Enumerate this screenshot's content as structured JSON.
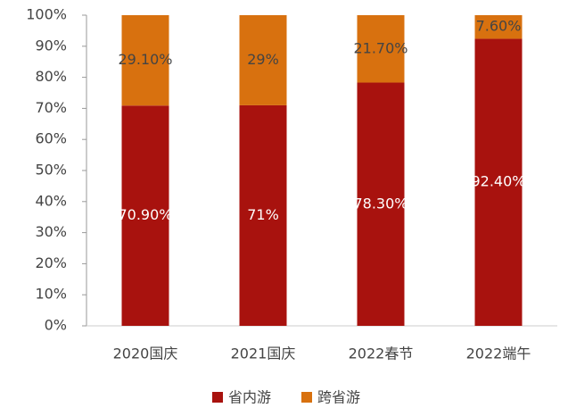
{
  "chart_data": {
    "type": "stacked_bar",
    "categories": [
      "2020国庆",
      "2021国庆",
      "2022春节",
      "2022端午"
    ],
    "series": [
      {
        "name": "省内游",
        "color": "#a8120e",
        "values": [
          70.9,
          71,
          78.3,
          92.4
        ],
        "value_labels": [
          "70.90%",
          "71%",
          "78.30%",
          "92.40%"
        ]
      },
      {
        "name": "跨省游",
        "color": "#d8710f",
        "values": [
          29.1,
          29,
          21.7,
          7.6
        ],
        "value_labels": [
          "29.10%",
          "29%",
          "21.70%",
          "7.60%"
        ]
      }
    ],
    "ylim": [
      0,
      100
    ],
    "yticks": [
      {
        "value": 0,
        "label": "0%"
      },
      {
        "value": 10,
        "label": "10%"
      },
      {
        "value": 20,
        "label": "20%"
      },
      {
        "value": 30,
        "label": "30%"
      },
      {
        "value": 40,
        "label": "40%"
      },
      {
        "value": 50,
        "label": "50%"
      },
      {
        "value": 60,
        "label": "60%"
      },
      {
        "value": 70,
        "label": "70%"
      },
      {
        "value": 80,
        "label": "80%"
      },
      {
        "value": 90,
        "label": "90%"
      },
      {
        "value": 100,
        "label": "100%"
      }
    ],
    "legend": "bottom"
  }
}
